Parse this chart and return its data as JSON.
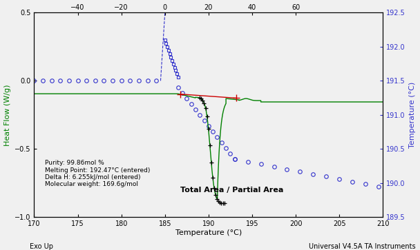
{
  "xlabel": "Temperature (°C)",
  "ylabel_left": "Heat Flow (W/g)",
  "ylabel_right": "Temperature (°C)",
  "xlim": [
    170,
    210
  ],
  "ylim_left": [
    -1.0,
    0.5
  ],
  "ylim_right": [
    189.5,
    192.5
  ],
  "x_ticks_bottom": [
    170,
    175,
    180,
    185,
    190,
    195,
    200,
    205,
    210
  ],
  "x_ticks_top": [
    -40,
    -20,
    0,
    20,
    40,
    60
  ],
  "y_ticks_left": [
    -1.0,
    -0.5,
    0.0,
    0.5
  ],
  "y_ticks_right": [
    189.5,
    190.0,
    190.5,
    191.0,
    191.5,
    192.0,
    192.5
  ],
  "annotation_text": "Purity: 99.86mol %\nMelting Point: 192.47°C (entered)\nDelta H: 6.255kJ/mol (entered)\nMolecular weight: 169.6g/mol",
  "total_area_label": "Total Area / Partial Area",
  "bottom_left_label": "Exo Up",
  "bottom_right_label": "Universal V4.5A TA Instruments",
  "background_color": "#f0f0f0",
  "green_color": "#008000",
  "blue_color": "#3333cc",
  "red_color": "#cc0000",
  "black_color": "#000000"
}
